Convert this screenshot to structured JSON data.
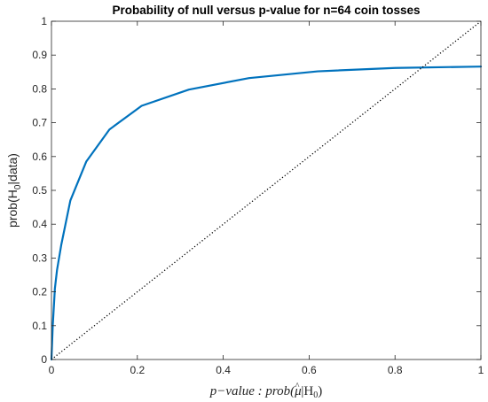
{
  "chart_data": {
    "type": "line",
    "title": "Probability of null versus p-value for n=64 coin tosses",
    "xlabel": {
      "main": "p−value : prob(",
      "mu": "μ",
      "hat": "^",
      "mid": "|H",
      "sub": "0",
      "end": ")"
    },
    "ylabel": {
      "main": "prob(H",
      "sub": "0",
      "end": "|data)"
    },
    "xlim": [
      0,
      1
    ],
    "ylim": [
      0,
      1
    ],
    "xticks": [
      0,
      0.2,
      0.4,
      0.6,
      0.8,
      1
    ],
    "xtick_labels": [
      "0",
      "0.2",
      "0.4",
      "0.6",
      "0.8",
      "1"
    ],
    "yticks": [
      0,
      0.1,
      0.2,
      0.3,
      0.4,
      0.5,
      0.6,
      0.7,
      0.8,
      0.9,
      1
    ],
    "ytick_labels": [
      "0",
      "0.1",
      "0.2",
      "0.3",
      "0.4",
      "0.5",
      "0.6",
      "0.7",
      "0.8",
      "0.9",
      "1"
    ],
    "grid": false,
    "series": [
      {
        "color": "#0072BD",
        "style": "solid",
        "x": [
          0.0,
          0.003,
          0.008,
          0.013,
          0.023,
          0.044,
          0.081,
          0.135,
          0.21,
          0.32,
          0.46,
          0.62,
          0.8,
          1.0
        ],
        "y": [
          0.0,
          0.1,
          0.21,
          0.265,
          0.34,
          0.47,
          0.585,
          0.68,
          0.75,
          0.798,
          0.832,
          0.852,
          0.862,
          0.866
        ]
      },
      {
        "color": "#000000",
        "style": "dotted",
        "x": [
          0,
          1
        ],
        "y": [
          0,
          1
        ]
      }
    ]
  }
}
